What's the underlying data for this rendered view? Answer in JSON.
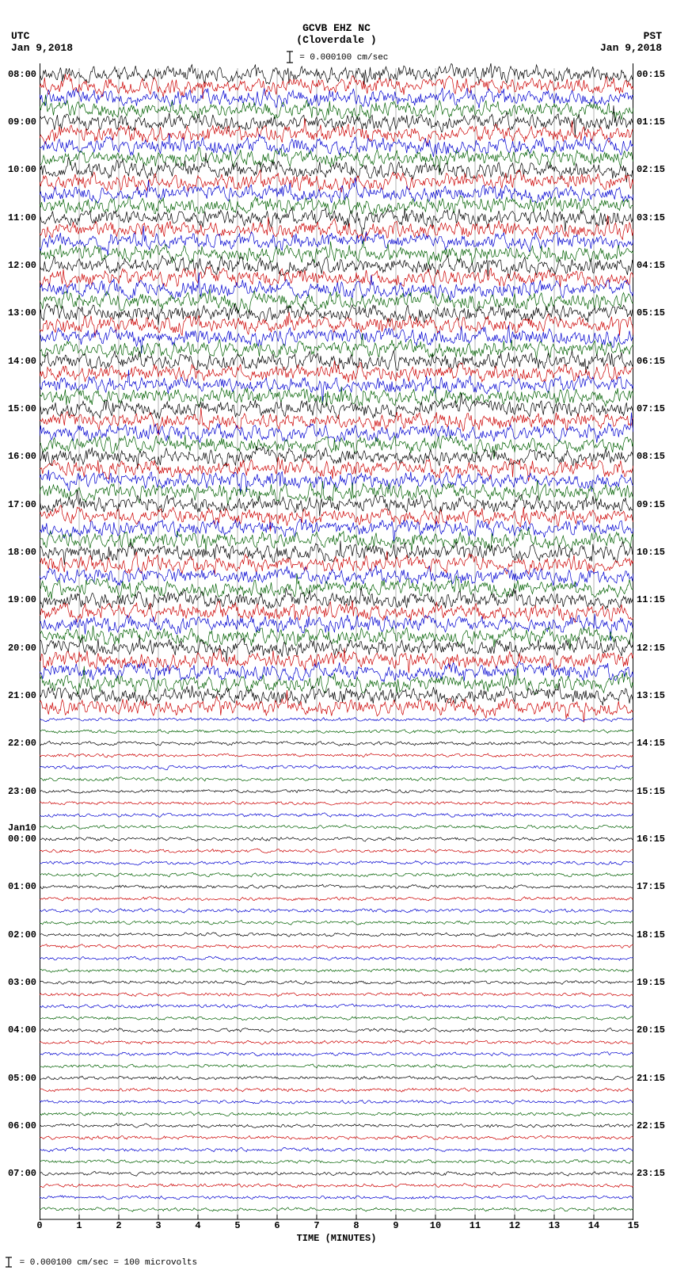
{
  "header": {
    "station_line1": "GCVB EHZ NC",
    "station_line2": "(Cloverdale )",
    "scale_text": "= 0.000100 cm/sec",
    "utc_label": "UTC",
    "utc_date": "Jan 9,2018",
    "pst_label": "PST",
    "pst_date": "Jan 9,2018"
  },
  "footer": {
    "text": "= 0.000100 cm/sec =    100 microvolts"
  },
  "helicorder": {
    "type": "helicorder-seismogram",
    "n_traces": 96,
    "trace_minutes": 15,
    "colors": [
      "#000000",
      "#cc0000",
      "#0000d0",
      "#006000"
    ],
    "background_color": "#ffffff",
    "grid_color": "#808080",
    "grid_width": 0.6,
    "line_width": 0.7,
    "x_axis": {
      "title": "TIME (MINUTES)",
      "min": 0,
      "max": 15,
      "ticks": [
        0,
        1,
        2,
        3,
        4,
        5,
        6,
        7,
        8,
        9,
        10,
        11,
        12,
        13,
        14,
        15
      ]
    },
    "amplitude_schedule": {
      "high_range_traces": [
        0,
        53
      ],
      "low_range_traces": [
        54,
        95
      ],
      "high_amplitude": 7.0,
      "low_amplitude": 1.5
    },
    "left_date_marker": {
      "trace_index": 64,
      "text": "Jan10"
    },
    "left_time_labels": [
      {
        "trace": 0,
        "text": "08:00"
      },
      {
        "trace": 4,
        "text": "09:00"
      },
      {
        "trace": 8,
        "text": "10:00"
      },
      {
        "trace": 12,
        "text": "11:00"
      },
      {
        "trace": 16,
        "text": "12:00"
      },
      {
        "trace": 20,
        "text": "13:00"
      },
      {
        "trace": 24,
        "text": "14:00"
      },
      {
        "trace": 28,
        "text": "15:00"
      },
      {
        "trace": 32,
        "text": "16:00"
      },
      {
        "trace": 36,
        "text": "17:00"
      },
      {
        "trace": 40,
        "text": "18:00"
      },
      {
        "trace": 44,
        "text": "19:00"
      },
      {
        "trace": 48,
        "text": "20:00"
      },
      {
        "trace": 52,
        "text": "21:00"
      },
      {
        "trace": 56,
        "text": "22:00"
      },
      {
        "trace": 60,
        "text": "23:00"
      },
      {
        "trace": 64,
        "text": "00:00"
      },
      {
        "trace": 68,
        "text": "01:00"
      },
      {
        "trace": 72,
        "text": "02:00"
      },
      {
        "trace": 76,
        "text": "03:00"
      },
      {
        "trace": 80,
        "text": "04:00"
      },
      {
        "trace": 84,
        "text": "05:00"
      },
      {
        "trace": 88,
        "text": "06:00"
      },
      {
        "trace": 92,
        "text": "07:00"
      }
    ],
    "right_time_labels": [
      {
        "trace": 0,
        "text": "00:15"
      },
      {
        "trace": 4,
        "text": "01:15"
      },
      {
        "trace": 8,
        "text": "02:15"
      },
      {
        "trace": 12,
        "text": "03:15"
      },
      {
        "trace": 16,
        "text": "04:15"
      },
      {
        "trace": 20,
        "text": "05:15"
      },
      {
        "trace": 24,
        "text": "06:15"
      },
      {
        "trace": 28,
        "text": "07:15"
      },
      {
        "trace": 32,
        "text": "08:15"
      },
      {
        "trace": 36,
        "text": "09:15"
      },
      {
        "trace": 40,
        "text": "10:15"
      },
      {
        "trace": 44,
        "text": "11:15"
      },
      {
        "trace": 48,
        "text": "12:15"
      },
      {
        "trace": 52,
        "text": "13:15"
      },
      {
        "trace": 56,
        "text": "14:15"
      },
      {
        "trace": 60,
        "text": "15:15"
      },
      {
        "trace": 64,
        "text": "16:15"
      },
      {
        "trace": 68,
        "text": "17:15"
      },
      {
        "trace": 72,
        "text": "18:15"
      },
      {
        "trace": 76,
        "text": "19:15"
      },
      {
        "trace": 80,
        "text": "20:15"
      },
      {
        "trace": 84,
        "text": "21:15"
      },
      {
        "trace": 88,
        "text": "22:15"
      },
      {
        "trace": 92,
        "text": "23:15"
      }
    ]
  }
}
